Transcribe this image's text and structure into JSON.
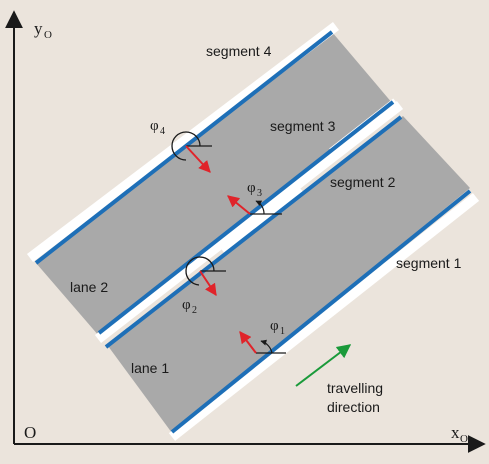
{
  "colors": {
    "background": "#ebe4dc",
    "road": "#a9a9a9",
    "edge_line": "#1e6fb7",
    "lane_gap": "#ffffff",
    "angle_vector": "#e0242a",
    "direction_arrow": "#1a9a3a",
    "axes": "#1a1a1a"
  },
  "axes": {
    "origin": "O",
    "x_label": "x",
    "x_sub": "O",
    "y_label": "y",
    "y_sub": "O"
  },
  "segments": [
    {
      "label": "segment 1"
    },
    {
      "label": "segment 2"
    },
    {
      "label": "segment 3"
    },
    {
      "label": "segment 4"
    }
  ],
  "lanes": [
    {
      "label": "lane 1"
    },
    {
      "label": "lane 2"
    }
  ],
  "angles": [
    {
      "symbol": "φ",
      "index": "1"
    },
    {
      "symbol": "φ",
      "index": "2"
    },
    {
      "symbol": "φ",
      "index": "3"
    },
    {
      "symbol": "φ",
      "index": "4"
    }
  ],
  "direction": {
    "line1": "travelling",
    "line2": "direction",
    "icon": "arrow-up-right-icon"
  }
}
